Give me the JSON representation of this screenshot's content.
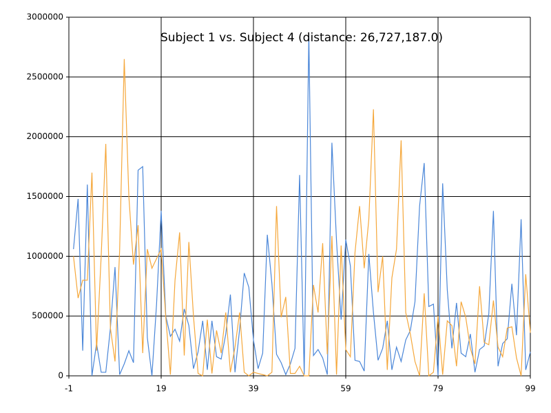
{
  "chart_data": {
    "type": "line",
    "title": "Subject 1 vs. Subject 4 (distance: 26,727,187.0)",
    "x": [
      0,
      1,
      2,
      3,
      4,
      5,
      6,
      7,
      8,
      9,
      10,
      11,
      12,
      13,
      14,
      15,
      16,
      17,
      18,
      19,
      20,
      21,
      22,
      23,
      24,
      25,
      26,
      27,
      28,
      29,
      30,
      31,
      32,
      33,
      34,
      35,
      36,
      37,
      38,
      39,
      40,
      41,
      42,
      43,
      44,
      45,
      46,
      47,
      48,
      49,
      50,
      51,
      52,
      53,
      54,
      55,
      56,
      57,
      58,
      59,
      60,
      61,
      62,
      63,
      64,
      65,
      66,
      67,
      68,
      69,
      70,
      71,
      72,
      73,
      74,
      75,
      76,
      77,
      78,
      79,
      80,
      81,
      82,
      83,
      84,
      85,
      86,
      87,
      88,
      89,
      90,
      91,
      92,
      93,
      94,
      95,
      96,
      97,
      98,
      99
    ],
    "series": [
      {
        "color": "#4a86d8",
        "values": [
          1060000,
          1480000,
          210000,
          1600000,
          0,
          270000,
          30000,
          30000,
          400000,
          910000,
          10000,
          100000,
          210000,
          110000,
          1720000,
          1750000,
          320000,
          0,
          600000,
          1380000,
          500000,
          330000,
          390000,
          290000,
          560000,
          420000,
          60000,
          200000,
          460000,
          50000,
          460000,
          160000,
          140000,
          350000,
          680000,
          30000,
          390000,
          860000,
          740000,
          300000,
          60000,
          190000,
          1180000,
          770000,
          180000,
          110000,
          10000,
          100000,
          230000,
          1680000,
          10000,
          2850000,
          170000,
          220000,
          150000,
          10000,
          1950000,
          1130000,
          470000,
          1140000,
          920000,
          130000,
          120000,
          40000,
          1020000,
          530000,
          130000,
          230000,
          460000,
          50000,
          240000,
          120000,
          300000,
          380000,
          620000,
          1420000,
          1780000,
          580000,
          600000,
          0,
          1610000,
          720000,
          230000,
          610000,
          190000,
          160000,
          350000,
          30000,
          220000,
          250000,
          520000,
          1380000,
          80000,
          270000,
          310000,
          770000,
          340000,
          1310000,
          50000,
          200000
        ]
      },
      {
        "color": "#f5a73a",
        "values": [
          1000000,
          650000,
          800000,
          800000,
          1700000,
          210000,
          1000000,
          1940000,
          400000,
          120000,
          1050000,
          2650000,
          1500000,
          930000,
          1260000,
          190000,
          1060000,
          900000,
          980000,
          1060000,
          490000,
          10000,
          800000,
          1200000,
          170000,
          1120000,
          500000,
          20000,
          0,
          470000,
          20000,
          380000,
          190000,
          530000,
          30000,
          240000,
          530000,
          30000,
          0,
          30000,
          20000,
          10000,
          0,
          30000,
          1420000,
          490000,
          660000,
          20000,
          20000,
          80000,
          0,
          0,
          760000,
          530000,
          1110000,
          180000,
          1170000,
          10000,
          1090000,
          220000,
          160000,
          1030000,
          1420000,
          900000,
          1310000,
          2230000,
          700000,
          1000000,
          50000,
          820000,
          1060000,
          1970000,
          530000,
          350000,
          120000,
          0,
          690000,
          0,
          30000,
          500000,
          10000,
          460000,
          420000,
          80000,
          620000,
          490000,
          230000,
          100000,
          750000,
          280000,
          260000,
          630000,
          240000,
          160000,
          400000,
          410000,
          150000,
          0,
          850000,
          360000
        ]
      }
    ],
    "xlim": [
      -1,
      99
    ],
    "xticks": [
      -1,
      19,
      39,
      59,
      79,
      99
    ],
    "ylim": [
      0,
      3000000
    ],
    "yticks": [
      0,
      500000,
      1000000,
      1500000,
      2000000,
      2500000,
      3000000
    ],
    "grid": true
  }
}
